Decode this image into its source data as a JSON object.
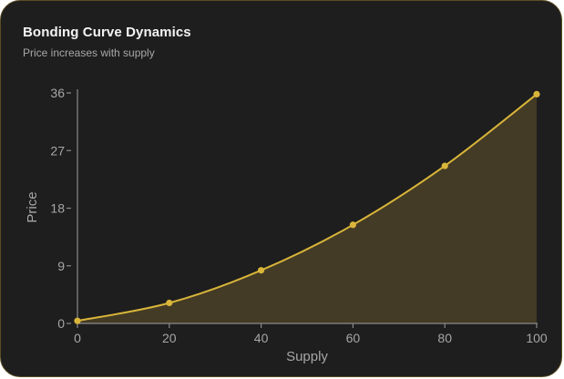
{
  "card": {
    "title": "Bonding Curve Dynamics",
    "subtitle": "Price increases with supply"
  },
  "colors": {
    "background": "#1e1e1e",
    "border": "#5a4d22",
    "accent": "#d9b53a",
    "fill": "#433b25",
    "axis": "#8a8a8a",
    "text_muted": "#a6a6a6"
  },
  "chart_data": {
    "type": "area",
    "x": [
      0,
      20,
      40,
      60,
      80,
      100
    ],
    "values": [
      0.4,
      3.2,
      8.3,
      15.4,
      24.6,
      35.8
    ],
    "xlabel": "Supply",
    "ylabel": "Price",
    "xlim": [
      0,
      100
    ],
    "ylim": [
      0,
      36
    ],
    "x_ticks": [
      0,
      20,
      40,
      60,
      80,
      100
    ],
    "y_ticks": [
      0,
      9,
      18,
      27,
      36
    ],
    "grid": false,
    "legend": "none"
  }
}
